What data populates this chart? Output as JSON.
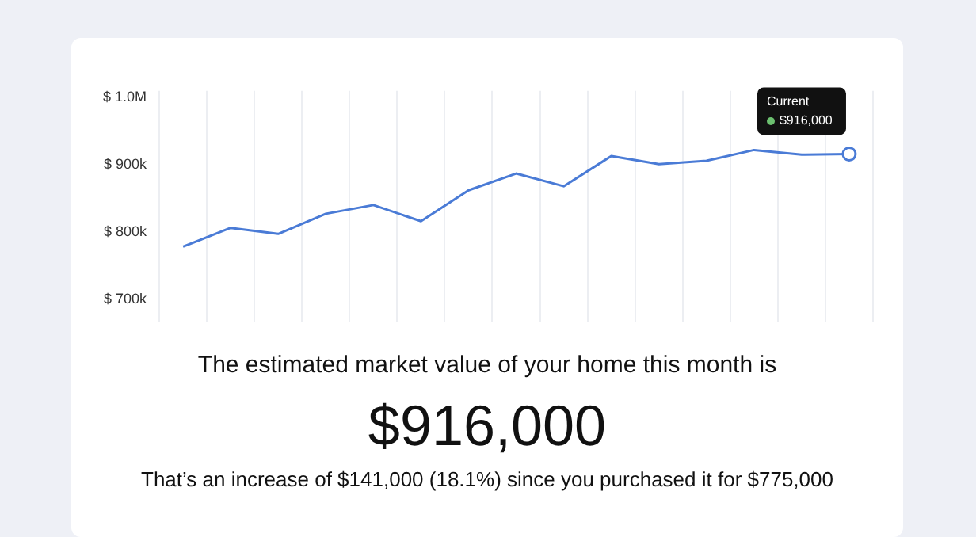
{
  "chart_data": {
    "type": "line",
    "categories": [
      null,
      null,
      null,
      null,
      null,
      null,
      null,
      null,
      null,
      null,
      null,
      null,
      null,
      null,
      null
    ],
    "series": [
      {
        "color": "#4a7bd6",
        "values": [
          778000,
          806000,
          797000,
          827000,
          840000,
          816000,
          862000,
          887000,
          868000,
          913000,
          901000,
          906000,
          922000,
          915000,
          916000
        ]
      }
    ],
    "ylim": [
      665000,
      1010000
    ],
    "yticks": [
      {
        "value": 700000,
        "label": "$ 700k"
      },
      {
        "value": 800000,
        "label": "$ 800k"
      },
      {
        "value": 900000,
        "label": "$ 900k"
      },
      {
        "value": 1000000,
        "label": "$ 1.0M"
      }
    ],
    "grid": "x",
    "legend": false,
    "marker": "none",
    "line_style": "solid",
    "annotations": [
      {
        "text": "Current\n$916,000",
        "y": 916000
      },
      "The estimated market value of your home this month is",
      "$916,000",
      "That’s an increase of $141,000 (18.1%) since you purchased it for $775,000"
    ]
  }
}
